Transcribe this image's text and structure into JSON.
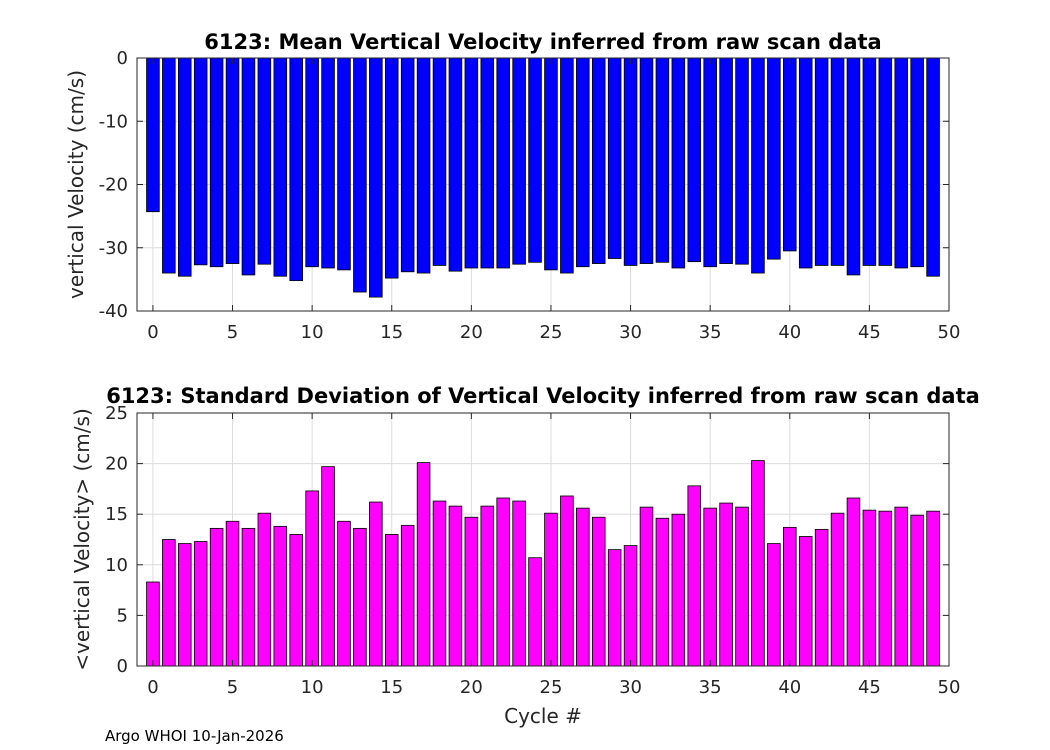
{
  "chart_data": [
    {
      "type": "bar",
      "title": "6123: Mean Vertical Velocity inferred from raw scan data",
      "xlabel": "",
      "ylabel": "vertical Velocity (cm/s)",
      "xlim": [
        -1,
        50
      ],
      "ylim": [
        -40,
        0
      ],
      "xticks": [
        "0",
        "5",
        "10",
        "15",
        "20",
        "25",
        "30",
        "35",
        "40",
        "45",
        "50"
      ],
      "yticks": [
        "0",
        "-10",
        "-20",
        "-30",
        "-40"
      ],
      "grid": true,
      "color": "#0000ff",
      "x": [
        0,
        1,
        2,
        3,
        4,
        5,
        6,
        7,
        8,
        9,
        10,
        11,
        12,
        13,
        14,
        15,
        16,
        17,
        18,
        19,
        20,
        21,
        22,
        23,
        24,
        25,
        26,
        27,
        28,
        29,
        30,
        31,
        32,
        33,
        34,
        35,
        36,
        37,
        38,
        39,
        40,
        41,
        42,
        43,
        44,
        45,
        46,
        47,
        48,
        49
      ],
      "values": [
        -24.3,
        -34.0,
        -34.5,
        -32.7,
        -33.0,
        -32.5,
        -34.3,
        -32.6,
        -34.5,
        -35.2,
        -33.0,
        -33.2,
        -33.5,
        -37.0,
        -37.8,
        -34.8,
        -33.8,
        -34.0,
        -32.8,
        -33.7,
        -33.2,
        -33.2,
        -33.2,
        -32.6,
        -32.3,
        -33.5,
        -34.0,
        -33.0,
        -32.5,
        -31.7,
        -32.8,
        -32.5,
        -32.3,
        -33.2,
        -32.2,
        -33.0,
        -32.5,
        -32.6,
        -34.0,
        -31.8,
        -30.5,
        -33.2,
        -32.8,
        -32.8,
        -34.3,
        -32.8,
        -32.8,
        -33.2,
        -33.0,
        -34.5
      ]
    },
    {
      "type": "bar",
      "title": "6123: Standard Deviation of Vertical Velocity inferred from raw scan data",
      "xlabel": "Cycle #",
      "ylabel": "<vertical Velocity> (cm/s)",
      "xlim": [
        -1,
        50
      ],
      "ylim": [
        0,
        25
      ],
      "xticks": [
        "0",
        "5",
        "10",
        "15",
        "20",
        "25",
        "30",
        "35",
        "40",
        "45",
        "50"
      ],
      "yticks": [
        "0",
        "5",
        "10",
        "15",
        "20",
        "25"
      ],
      "grid": true,
      "color": "#ff00ff",
      "x": [
        0,
        1,
        2,
        3,
        4,
        5,
        6,
        7,
        8,
        9,
        10,
        11,
        12,
        13,
        14,
        15,
        16,
        17,
        18,
        19,
        20,
        21,
        22,
        23,
        24,
        25,
        26,
        27,
        28,
        29,
        30,
        31,
        32,
        33,
        34,
        35,
        36,
        37,
        38,
        39,
        40,
        41,
        42,
        43,
        44,
        45,
        46,
        47,
        48,
        49
      ],
      "values": [
        8.3,
        12.5,
        12.1,
        12.3,
        13.6,
        14.3,
        13.6,
        15.1,
        13.8,
        13.0,
        17.3,
        19.7,
        14.3,
        13.6,
        16.2,
        13.0,
        13.9,
        20.1,
        16.3,
        15.8,
        14.7,
        15.8,
        16.6,
        16.3,
        10.7,
        15.1,
        16.8,
        15.6,
        14.7,
        11.5,
        11.9,
        15.7,
        14.6,
        15.0,
        17.8,
        15.6,
        16.1,
        15.7,
        20.3,
        12.1,
        13.7,
        12.8,
        13.5,
        15.1,
        16.6,
        15.4,
        15.3,
        15.7,
        14.9,
        15.3
      ]
    }
  ],
  "footer": "Argo WHOI 10-Jan-2026"
}
